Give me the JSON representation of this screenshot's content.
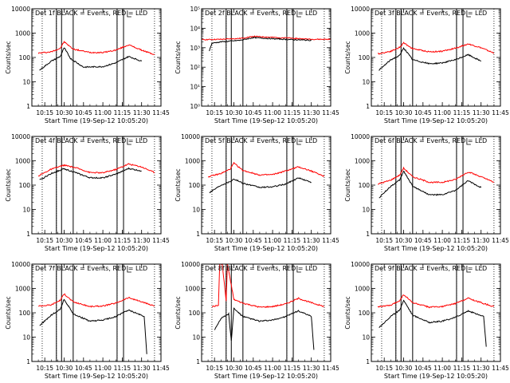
{
  "colors": {
    "events": "#000000",
    "lld": "#ff0000",
    "background": "#ffffff",
    "axes": "#000000"
  },
  "chart_data": [
    {
      "type": "line",
      "title": "Det 1f BLACK = Events, RED = LLD",
      "xlabel": "Start Time (19-Sep-12 10:05:20)",
      "ylabel": "Counts/sec",
      "xlim": [
        "10:05",
        "11:45"
      ],
      "ylog": true,
      "ylim": [
        1,
        10000
      ],
      "yticks": [
        "1",
        "10",
        "100",
        "1000",
        "10000"
      ],
      "xticks": [
        "10:15",
        "10:30",
        "10:45",
        "11:00",
        "11:15",
        "11:30",
        "11:45"
      ],
      "dotted_x": [
        "10:13",
        "10:24",
        "11:11",
        "11:40"
      ],
      "solid_x": [
        "10:24",
        "10:28",
        "10:37",
        "11:11",
        "11:16"
      ],
      "series": [
        {
          "name": "LLD",
          "color": "#ff0000",
          "x": [
            "10:10",
            "10:20",
            "10:27",
            "10:30",
            "10:37",
            "10:50",
            "11:00",
            "11:10",
            "11:20",
            "11:30",
            "11:40"
          ],
          "y": [
            150,
            170,
            240,
            440,
            220,
            160,
            160,
            200,
            330,
            200,
            130
          ]
        },
        {
          "name": "Events",
          "color": "#000000",
          "x": [
            "10:11",
            "10:20",
            "10:27",
            "10:30",
            "10:35",
            "10:45",
            "11:00",
            "11:10",
            "11:20",
            "11:30"
          ],
          "y": [
            30,
            70,
            110,
            250,
            90,
            40,
            42,
            60,
            110,
            70
          ]
        }
      ]
    },
    {
      "type": "line",
      "title": "Det 2f BLACK = Events, RED = LLD",
      "xlabel": "Start Time (19-Sep-12 10:05:20)",
      "ylabel": "Counts/sec",
      "xlim": [
        "10:05",
        "11:45"
      ],
      "ylog": true,
      "ylim": [
        1,
        100000
      ],
      "yticks": [
        "10⁰",
        "10¹",
        "10²",
        "10³",
        "10⁴",
        "10⁵"
      ],
      "xticks": [
        "10:15",
        "10:30",
        "10:45",
        "11:00",
        "11:15",
        "11:30",
        "11:45"
      ],
      "dotted_x": [
        "10:13",
        "10:24",
        "11:11",
        "11:40"
      ],
      "solid_x": [
        "10:24",
        "10:28",
        "10:37",
        "11:11",
        "11:16"
      ],
      "series": [
        {
          "name": "LLD",
          "color": "#ff0000",
          "x": [
            "10:05",
            "10:20",
            "10:35",
            "10:45",
            "11:00",
            "11:15",
            "11:30",
            "11:45"
          ],
          "y": [
            2600,
            2700,
            3000,
            3800,
            3400,
            3100,
            2700,
            2700
          ]
        },
        {
          "name": "Events",
          "color": "#000000",
          "x": [
            "10:11",
            "10:13",
            "10:20",
            "10:35",
            "10:45",
            "11:00",
            "11:15",
            "11:30"
          ],
          "y": [
            700,
            1700,
            2000,
            2400,
            3300,
            2900,
            2600,
            2400
          ]
        }
      ]
    },
    {
      "type": "line",
      "title": "Det 3f BLACK = Events, RED = LLD",
      "xlabel": "Start Time (19-Sep-12 10:05:20)",
      "ylabel": "Counts/sec",
      "xlim": [
        "10:05",
        "11:45"
      ],
      "ylog": true,
      "ylim": [
        1,
        10000
      ],
      "yticks": [
        "1",
        "10",
        "100",
        "1000",
        "10000"
      ],
      "xticks": [
        "10:15",
        "10:30",
        "10:45",
        "11:00",
        "11:15",
        "11:30",
        "11:45"
      ],
      "dotted_x": [
        "10:13",
        "10:24",
        "11:11",
        "11:40"
      ],
      "solid_x": [
        "10:24",
        "10:28",
        "10:37",
        "11:11",
        "11:16"
      ],
      "series": [
        {
          "name": "LLD",
          "color": "#ff0000",
          "x": [
            "10:10",
            "10:20",
            "10:27",
            "10:30",
            "10:37",
            "10:50",
            "11:00",
            "11:10",
            "11:20",
            "11:30",
            "11:40"
          ],
          "y": [
            140,
            180,
            260,
            400,
            230,
            170,
            180,
            240,
            360,
            250,
            150
          ]
        },
        {
          "name": "Events",
          "color": "#000000",
          "x": [
            "10:11",
            "10:20",
            "10:27",
            "10:30",
            "10:37",
            "10:50",
            "11:00",
            "11:10",
            "11:20",
            "11:30"
          ],
          "y": [
            30,
            80,
            120,
            250,
            80,
            55,
            60,
            80,
            130,
            70
          ]
        }
      ]
    },
    {
      "type": "line",
      "title": "Det 4f BLACK = Events, RED = LLD",
      "xlabel": "Start Time (19-Sep-12 10:05:20)",
      "ylabel": "Counts/sec",
      "xlim": [
        "10:05",
        "11:45"
      ],
      "ylog": true,
      "ylim": [
        1,
        10000
      ],
      "yticks": [
        "1",
        "10",
        "100",
        "1000",
        "10000"
      ],
      "xticks": [
        "10:15",
        "10:30",
        "10:45",
        "11:00",
        "11:15",
        "11:30",
        "11:45"
      ],
      "dotted_x": [
        "10:13",
        "10:24",
        "11:11",
        "11:40"
      ],
      "solid_x": [
        "10:24",
        "10:28",
        "10:37",
        "11:11",
        "11:16"
      ],
      "series": [
        {
          "name": "LLD",
          "color": "#ff0000",
          "x": [
            "10:10",
            "10:20",
            "10:30",
            "10:40",
            "10:50",
            "11:00",
            "11:10",
            "11:20",
            "11:30",
            "11:40"
          ],
          "y": [
            240,
            450,
            660,
            500,
            330,
            320,
            440,
            740,
            560,
            330
          ]
        },
        {
          "name": "Events",
          "color": "#000000",
          "x": [
            "10:11",
            "10:20",
            "10:30",
            "10:40",
            "10:50",
            "11:00",
            "11:10",
            "11:20",
            "11:30"
          ],
          "y": [
            160,
            300,
            470,
            310,
            200,
            200,
            280,
            480,
            380
          ]
        }
      ]
    },
    {
      "type": "line",
      "title": "Det 5f BLACK = Events, RED = LLD",
      "xlabel": "Start Time (19-Sep-12 10:05:20)",
      "ylabel": "Counts/sec",
      "xlim": [
        "10:05",
        "11:45"
      ],
      "ylog": true,
      "ylim": [
        1,
        10000
      ],
      "yticks": [
        "1",
        "10",
        "100",
        "1000",
        "10000"
      ],
      "xticks": [
        "10:15",
        "10:30",
        "10:45",
        "11:00",
        "11:15",
        "11:30",
        "11:45"
      ],
      "dotted_x": [
        "10:13",
        "10:24",
        "11:11",
        "11:40"
      ],
      "solid_x": [
        "10:24",
        "10:28",
        "10:37",
        "11:11",
        "11:16"
      ],
      "series": [
        {
          "name": "LLD",
          "color": "#ff0000",
          "x": [
            "10:10",
            "10:20",
            "10:27",
            "10:30",
            "10:37",
            "10:50",
            "11:00",
            "11:10",
            "11:20",
            "11:30",
            "11:40"
          ],
          "y": [
            220,
            300,
            450,
            800,
            400,
            260,
            270,
            380,
            560,
            380,
            230
          ]
        },
        {
          "name": "Events",
          "color": "#000000",
          "x": [
            "10:11",
            "10:20",
            "10:27",
            "10:30",
            "10:37",
            "10:50",
            "11:00",
            "11:10",
            "11:20",
            "11:30"
          ],
          "y": [
            50,
            100,
            140,
            180,
            120,
            80,
            85,
            110,
            200,
            130
          ]
        }
      ]
    },
    {
      "type": "line",
      "title": "Det 6f BLACK = Events, RED = LLD",
      "xlabel": "Start Time (19-Sep-12 10:05:20)",
      "ylabel": "Counts/sec",
      "xlim": [
        "10:05",
        "11:45"
      ],
      "ylog": true,
      "ylim": [
        1,
        10000
      ],
      "yticks": [
        "1",
        "10",
        "100",
        "1000",
        "10000"
      ],
      "xticks": [
        "10:15",
        "10:30",
        "10:45",
        "11:00",
        "11:15",
        "11:30",
        "11:45"
      ],
      "dotted_x": [
        "10:13",
        "10:24",
        "11:11",
        "11:40"
      ],
      "solid_x": [
        "10:24",
        "10:28",
        "10:37",
        "11:11",
        "11:16"
      ],
      "series": [
        {
          "name": "LLD",
          "color": "#ff0000",
          "x": [
            "10:10",
            "10:20",
            "10:27",
            "10:30",
            "10:37",
            "10:50",
            "11:00",
            "11:10",
            "11:20",
            "11:30",
            "11:40"
          ],
          "y": [
            110,
            160,
            260,
            500,
            220,
            130,
            130,
            170,
            350,
            220,
            130
          ]
        },
        {
          "name": "Events",
          "color": "#000000",
          "x": [
            "10:11",
            "10:20",
            "10:27",
            "10:30",
            "10:37",
            "10:50",
            "11:00",
            "11:10",
            "11:20",
            "11:30"
          ],
          "y": [
            30,
            90,
            160,
            380,
            90,
            40,
            40,
            60,
            150,
            80
          ]
        }
      ]
    },
    {
      "type": "line",
      "title": "Det 7f BLACK = Events, RED = LLD",
      "xlabel": "Start Time (19-Sep-12 10:05:20)",
      "ylabel": "Counts/sec",
      "xlim": [
        "10:05",
        "11:45"
      ],
      "ylog": true,
      "ylim": [
        1,
        10000
      ],
      "yticks": [
        "1",
        "10",
        "100",
        "1000",
        "10000"
      ],
      "xticks": [
        "10:15",
        "10:30",
        "10:45",
        "11:00",
        "11:15",
        "11:30",
        "11:45"
      ],
      "dotted_x": [
        "10:13",
        "10:24",
        "11:11",
        "11:40"
      ],
      "solid_x": [
        "10:24",
        "10:28",
        "10:37",
        "11:11",
        "11:16"
      ],
      "series": [
        {
          "name": "LLD",
          "color": "#ff0000",
          "x": [
            "10:10",
            "10:20",
            "10:27",
            "10:30",
            "10:37",
            "10:50",
            "11:00",
            "11:10",
            "11:20",
            "11:30",
            "11:40"
          ],
          "y": [
            190,
            210,
            330,
            600,
            280,
            180,
            190,
            250,
            420,
            280,
            190
          ]
        },
        {
          "name": "Events",
          "color": "#000000",
          "x": [
            "10:11",
            "10:20",
            "10:27",
            "10:30",
            "10:37",
            "10:50",
            "11:00",
            "11:10",
            "11:20",
            "11:32",
            "11:34"
          ],
          "y": [
            30,
            80,
            140,
            360,
            90,
            45,
            50,
            70,
            130,
            70,
            2
          ]
        }
      ]
    },
    {
      "type": "line",
      "title": "Det 8f BLACK = Events, RED = LLD",
      "xlabel": "Start Time (19-Sep-12 10:05:20)",
      "ylabel": "Counts/sec",
      "xlim": [
        "10:05",
        "11:45"
      ],
      "ylog": true,
      "ylim": [
        1,
        10000
      ],
      "yticks": [
        "1",
        "10",
        "100",
        "1000",
        "10000"
      ],
      "xticks": [
        "10:15",
        "10:30",
        "10:45",
        "11:00",
        "11:15",
        "11:30",
        "11:45"
      ],
      "dotted_x": [
        "10:13",
        "10:24",
        "11:11",
        "11:40"
      ],
      "solid_x": [
        "10:24",
        "10:28",
        "10:37",
        "11:11",
        "11:16"
      ],
      "series": [
        {
          "name": "LLD",
          "color": "#ff0000",
          "x": [
            "10:13",
            "10:18",
            "10:19",
            "10:21",
            "10:24",
            "10:25",
            "10:30",
            "10:37",
            "10:50",
            "11:00",
            "11:10",
            "11:20",
            "11:30",
            "11:40"
          ],
          "y": [
            180,
            200,
            10000,
            10000,
            300,
            10000,
            350,
            250,
            170,
            180,
            230,
            390,
            260,
            180
          ]
        },
        {
          "name": "Events",
          "color": "#000000",
          "x": [
            "10:15",
            "10:20",
            "10:26",
            "10:28",
            "10:30",
            "10:37",
            "10:50",
            "11:00",
            "11:10",
            "11:20",
            "11:30",
            "11:32"
          ],
          "y": [
            20,
            60,
            90,
            7,
            150,
            70,
            45,
            50,
            70,
            120,
            70,
            3
          ]
        }
      ]
    },
    {
      "type": "line",
      "title": "Det 9f BLACK = Events, RED = LLD",
      "xlabel": "Start Time (19-Sep-12 10:05:20)",
      "ylabel": "Counts/sec",
      "xlim": [
        "10:05",
        "11:45"
      ],
      "ylog": true,
      "ylim": [
        1,
        10000
      ],
      "yticks": [
        "1",
        "10",
        "100",
        "1000",
        "10000"
      ],
      "xticks": [
        "10:15",
        "10:30",
        "10:45",
        "11:00",
        "11:15",
        "11:30",
        "11:45"
      ],
      "dotted_x": [
        "10:13",
        "10:24",
        "11:11",
        "11:40"
      ],
      "solid_x": [
        "10:24",
        "10:28",
        "10:37",
        "11:11",
        "11:16"
      ],
      "series": [
        {
          "name": "LLD",
          "color": "#ff0000",
          "x": [
            "10:10",
            "10:20",
            "10:27",
            "10:30",
            "10:37",
            "10:50",
            "11:00",
            "11:10",
            "11:20",
            "11:30",
            "11:40"
          ],
          "y": [
            180,
            200,
            320,
            560,
            260,
            170,
            180,
            240,
            400,
            260,
            180
          ]
        },
        {
          "name": "Events",
          "color": "#000000",
          "x": [
            "10:11",
            "10:20",
            "10:27",
            "10:30",
            "10:37",
            "10:50",
            "11:00",
            "11:10",
            "11:20",
            "11:32",
            "11:34"
          ],
          "y": [
            25,
            70,
            130,
            330,
            80,
            40,
            45,
            65,
            120,
            70,
            4
          ]
        }
      ]
    }
  ]
}
